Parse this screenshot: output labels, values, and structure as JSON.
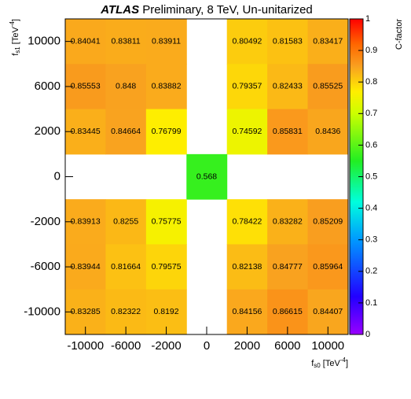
{
  "chart_data": {
    "type": "heatmap",
    "experiment": "ATLAS",
    "title": "Preliminary, 8 TeV, Un-unitarized",
    "xlabel": [
      "f",
      "s0",
      " [TeV",
      "-4",
      "]"
    ],
    "ylabel": [
      "f",
      "s1",
      " [TeV",
      "-4",
      "]"
    ],
    "zlabel": "C-factor",
    "categories": [
      -10000,
      -6000,
      -2000,
      0,
      2000,
      6000,
      10000
    ],
    "y_categories": [
      10000,
      6000,
      2000,
      0,
      -2000,
      -6000,
      -10000
    ],
    "z": [
      [
        0.84041,
        0.83811,
        0.83911,
        null,
        0.80492,
        0.81583,
        0.83417
      ],
      [
        0.85553,
        0.848,
        0.83882,
        null,
        0.79357,
        0.82433,
        0.85525
      ],
      [
        0.83445,
        0.84664,
        0.76799,
        null,
        0.74592,
        0.85831,
        0.8436
      ],
      [
        null,
        null,
        null,
        0.568,
        null,
        null,
        null
      ],
      [
        0.83913,
        0.8255,
        0.75775,
        null,
        0.78422,
        0.83282,
        0.85209
      ],
      [
        0.83944,
        0.81664,
        0.79575,
        null,
        0.82138,
        0.84777,
        0.85964
      ],
      [
        0.83285,
        0.82322,
        0.8192,
        null,
        0.84156,
        0.86615,
        0.84407
      ]
    ],
    "zlim": [
      0,
      1
    ],
    "zticks": [
      0,
      0.1,
      0.2,
      0.3,
      0.4,
      0.5,
      0.6,
      0.7,
      0.8,
      0.9,
      1
    ],
    "colormap": [
      {
        "value": 0,
        "color": "#9900ff"
      },
      {
        "value": 0.12,
        "color": "#2200ff"
      },
      {
        "value": 0.3,
        "color": "#0099ff"
      },
      {
        "value": 0.42,
        "color": "#00ffdd"
      },
      {
        "value": 0.55,
        "color": "#22ee22"
      },
      {
        "value": 0.7,
        "color": "#ccff00"
      },
      {
        "value": 0.77,
        "color": "#ffee00"
      },
      {
        "value": 0.85,
        "color": "#f9a020"
      },
      {
        "value": 0.92,
        "color": "#ff6600"
      },
      {
        "value": 1,
        "color": "#ff0000"
      }
    ]
  }
}
